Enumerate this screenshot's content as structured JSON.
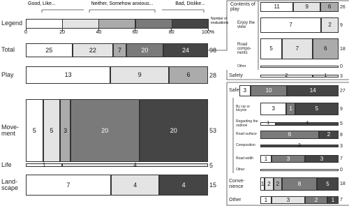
{
  "chart_data": {
    "type": "stacked_bar_panels",
    "legend_title": "Legend",
    "legend_labels": [
      "Good, Like...",
      "Neither, Somehow anxious...",
      "Bad, Dislike..."
    ],
    "count_label": "Number of evaluations",
    "colors": [
      "#ffffff",
      "#e4e4e4",
      "#ababab",
      "#7a7a7a",
      "#454545"
    ],
    "xlim": [
      0,
      100
    ],
    "xticks": [
      0,
      20,
      40,
      60,
      80,
      {
        "value": 100,
        "label": "100%"
      }
    ],
    "bars": [
      {
        "name": "Total",
        "values": [
          25,
          22,
          7,
          20,
          24
        ],
        "count": 98
      },
      {
        "name": "Play",
        "values": [
          13,
          9,
          6,
          null,
          null
        ],
        "count": 28
      },
      {
        "name": "Move-ment",
        "values": [
          5,
          5,
          3,
          20,
          20
        ],
        "count": 53
      },
      {
        "name": "Life",
        "values": [
          1,
          4,
          null,
          null,
          null
        ],
        "count": 5
      },
      {
        "name": "Land-scape",
        "values": [
          7,
          4,
          null,
          null,
          4
        ],
        "count": 15
      },
      {
        "name": "Contents of play",
        "values": [
          11,
          9,
          6,
          null,
          null
        ],
        "count": 26
      },
      {
        "name": "Enjoy the view",
        "values": [
          7,
          2,
          null,
          null,
          null
        ],
        "count": 9
      },
      {
        "name": "Road compo-nents",
        "values": [
          5,
          7,
          6,
          null,
          null
        ],
        "count": 18
      },
      {
        "name": "Other",
        "values": [
          null,
          null,
          null,
          null,
          null
        ],
        "count": 0
      },
      {
        "name": "Safety",
        "values": [
          2,
          1,
          null,
          null,
          null
        ],
        "count": 3
      },
      {
        "name": "Safety",
        "values": [
          3,
          null,
          null,
          10,
          14
        ],
        "count": 27
      },
      {
        "name": "By car or bicycle",
        "values": [
          3,
          null,
          null,
          1,
          5
        ],
        "count": 9
      },
      {
        "name": "Regarding the outlook",
        "values": [
          1,
          null,
          null,
          null,
          4
        ],
        "count": 5
      },
      {
        "name": "Road surface",
        "values": [
          null,
          null,
          null,
          6,
          2
        ],
        "count": 8
      },
      {
        "name": "Composition",
        "values": [
          null,
          null,
          null,
          null,
          3
        ],
        "count": 3
      },
      {
        "name": "Road width",
        "values": [
          1,
          null,
          null,
          3,
          3
        ],
        "count": 7
      },
      {
        "name": "Other",
        "values": [
          null,
          null,
          null,
          null,
          null
        ],
        "count": 0
      },
      {
        "name": "Conve-nience",
        "values": [
          1,
          2,
          2,
          8,
          5
        ],
        "count": 18
      },
      {
        "name": "Other",
        "values": [
          1,
          3,
          null,
          2,
          1
        ],
        "count": 7
      }
    ]
  }
}
